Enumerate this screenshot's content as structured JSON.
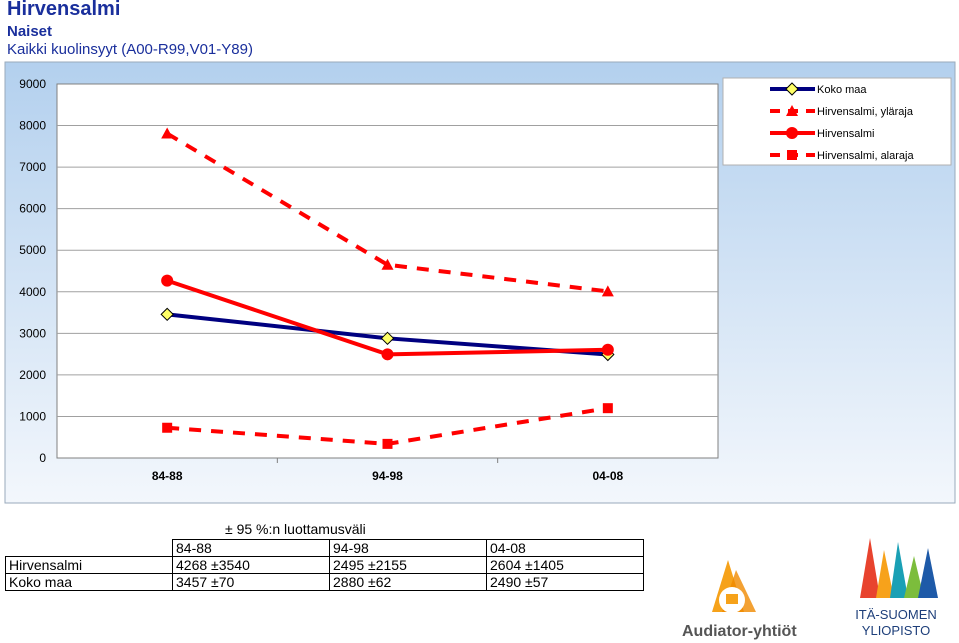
{
  "header": {
    "title": "Hirvensalmi",
    "subtitle": "Naiset",
    "causes": "Kaikki kuolinsyyt (A00-R99,V01-Y89)"
  },
  "chart_data": {
    "type": "line",
    "categories": [
      "84-88",
      "94-98",
      "04-08"
    ],
    "ylim": [
      0,
      9000
    ],
    "yticks": [
      0,
      1000,
      2000,
      3000,
      4000,
      5000,
      6000,
      7000,
      8000,
      9000
    ],
    "grid": true,
    "legend_position": "top-right",
    "series": [
      {
        "name": "Koko maa",
        "values": [
          3457,
          2880,
          2490
        ],
        "color": "#000080",
        "marker": "diamond",
        "dash": "solid"
      },
      {
        "name": "Hirvensalmi, yläraja",
        "values": [
          7808,
          4650,
          4009
        ],
        "color": "#ff0000",
        "marker": "triangle",
        "dash": "dashed"
      },
      {
        "name": "Hirvensalmi",
        "values": [
          4268,
          2495,
          2604
        ],
        "color": "#ff0000",
        "marker": "circle",
        "dash": "solid"
      },
      {
        "name": "Hirvensalmi, alaraja",
        "values": [
          728,
          340,
          1199
        ],
        "color": "#ff0000",
        "marker": "square",
        "dash": "dashed"
      }
    ],
    "plot_background": "#ffffff",
    "area_background": "#dbe9f7"
  },
  "ci_table": {
    "caption": "± 95 %:n luottamusväli",
    "columns": [
      "84-88",
      "94-98",
      "04-08"
    ],
    "rows": [
      {
        "label": "Hirvensalmi",
        "cells": [
          "4268 ±3540",
          "2495 ±2155",
          "2604 ±1405"
        ]
      },
      {
        "label": "Koko maa",
        "cells": [
          "3457 ±70",
          "2880 ±62",
          "2490 ±57"
        ]
      }
    ]
  },
  "logos": {
    "audiator": "Audiator-yhtiöt",
    "university_line1": "ITÄ-SUOMEN",
    "university_line2": "YLIOPISTO"
  }
}
